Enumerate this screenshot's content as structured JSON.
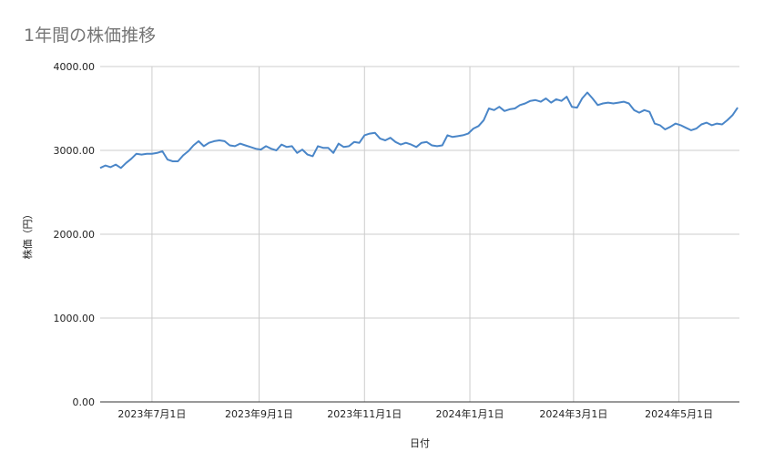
{
  "chart_data": {
    "type": "line",
    "title": "1年間の株価推移",
    "xlabel": "日付",
    "ylabel": "株価（円）",
    "ylim": [
      0,
      4000
    ],
    "yticks": [
      "0.00",
      "1000.00",
      "2000.00",
      "3000.00",
      "4000.00"
    ],
    "xlim": [
      "2023-06-01",
      "2024-06-05"
    ],
    "xticks": [
      {
        "date": "2023-07-01",
        "label": "2023年7月1日"
      },
      {
        "date": "2023-09-01",
        "label": "2023年9月1日"
      },
      {
        "date": "2023-11-01",
        "label": "2023年11月1日"
      },
      {
        "date": "2024-01-01",
        "label": "2024年1月1日"
      },
      {
        "date": "2024-03-01",
        "label": "2024年3月1日"
      },
      {
        "date": "2024-05-01",
        "label": "2024年5月1日"
      }
    ],
    "grid": true,
    "legend": "none",
    "color": "#4a86c8",
    "series": [
      {
        "x": [
          "2023-06-01",
          "2023-06-04",
          "2023-06-07",
          "2023-06-10",
          "2023-06-13",
          "2023-06-16",
          "2023-06-19",
          "2023-06-22",
          "2023-06-25",
          "2023-06-28",
          "2023-07-01",
          "2023-07-04",
          "2023-07-07",
          "2023-07-10",
          "2023-07-13",
          "2023-07-16",
          "2023-07-19",
          "2023-07-22",
          "2023-07-25",
          "2023-07-28",
          "2023-07-31",
          "2023-08-03",
          "2023-08-06",
          "2023-08-09",
          "2023-08-12",
          "2023-08-15",
          "2023-08-18",
          "2023-08-21",
          "2023-08-24",
          "2023-08-27",
          "2023-08-30",
          "2023-09-02",
          "2023-09-05",
          "2023-09-08",
          "2023-09-11",
          "2023-09-14",
          "2023-09-17",
          "2023-09-20",
          "2023-09-23",
          "2023-09-26",
          "2023-09-29",
          "2023-10-02",
          "2023-10-05",
          "2023-10-08",
          "2023-10-11",
          "2023-10-14",
          "2023-10-17",
          "2023-10-20",
          "2023-10-23",
          "2023-10-26",
          "2023-10-29",
          "2023-11-01",
          "2023-11-04",
          "2023-11-07",
          "2023-11-10",
          "2023-11-13",
          "2023-11-16",
          "2023-11-19",
          "2023-11-22",
          "2023-11-25",
          "2023-11-28",
          "2023-12-01",
          "2023-12-04",
          "2023-12-07",
          "2023-12-10",
          "2023-12-13",
          "2023-12-16",
          "2023-12-19",
          "2023-12-22",
          "2023-12-25",
          "2023-12-28",
          "2023-12-31",
          "2024-01-03",
          "2024-01-06",
          "2024-01-09",
          "2024-01-12",
          "2024-01-15",
          "2024-01-18",
          "2024-01-21",
          "2024-01-24",
          "2024-01-27",
          "2024-01-30",
          "2024-02-02",
          "2024-02-05",
          "2024-02-08",
          "2024-02-11",
          "2024-02-14",
          "2024-02-17",
          "2024-02-20",
          "2024-02-23",
          "2024-02-26",
          "2024-02-29",
          "2024-03-03",
          "2024-03-06",
          "2024-03-09",
          "2024-03-12",
          "2024-03-15",
          "2024-03-18",
          "2024-03-21",
          "2024-03-24",
          "2024-03-27",
          "2024-03-30",
          "2024-04-02",
          "2024-04-05",
          "2024-04-08",
          "2024-04-11",
          "2024-04-14",
          "2024-04-17",
          "2024-04-20",
          "2024-04-23",
          "2024-04-26",
          "2024-04-29",
          "2024-05-02",
          "2024-05-05",
          "2024-05-08",
          "2024-05-11",
          "2024-05-14",
          "2024-05-17",
          "2024-05-20",
          "2024-05-23",
          "2024-05-26",
          "2024-05-29",
          "2024-06-01",
          "2024-06-04"
        ],
        "values": [
          2790,
          2820,
          2800,
          2830,
          2790,
          2850,
          2900,
          2960,
          2950,
          2960,
          2960,
          2970,
          2990,
          2890,
          2870,
          2870,
          2940,
          2990,
          3060,
          3110,
          3050,
          3090,
          3110,
          3120,
          3110,
          3060,
          3050,
          3080,
          3060,
          3040,
          3020,
          3010,
          3050,
          3020,
          3000,
          3070,
          3040,
          3050,
          2970,
          3010,
          2950,
          2930,
          3050,
          3030,
          3030,
          2970,
          3080,
          3040,
          3050,
          3100,
          3090,
          3180,
          3200,
          3210,
          3140,
          3120,
          3150,
          3100,
          3070,
          3090,
          3070,
          3040,
          3090,
          3100,
          3060,
          3050,
          3060,
          3180,
          3160,
          3170,
          3180,
          3200,
          3260,
          3290,
          3360,
          3500,
          3480,
          3520,
          3470,
          3490,
          3500,
          3540,
          3560,
          3590,
          3600,
          3580,
          3620,
          3570,
          3610,
          3590,
          3640,
          3520,
          3510,
          3620,
          3690,
          3620,
          3540,
          3560,
          3570,
          3560,
          3570,
          3580,
          3560,
          3480,
          3450,
          3480,
          3460,
          3320,
          3300,
          3250,
          3280,
          3320,
          3300,
          3270,
          3240,
          3260,
          3310,
          3330,
          3300,
          3320,
          3310,
          3360,
          3420,
          3510
        ]
      }
    ]
  }
}
